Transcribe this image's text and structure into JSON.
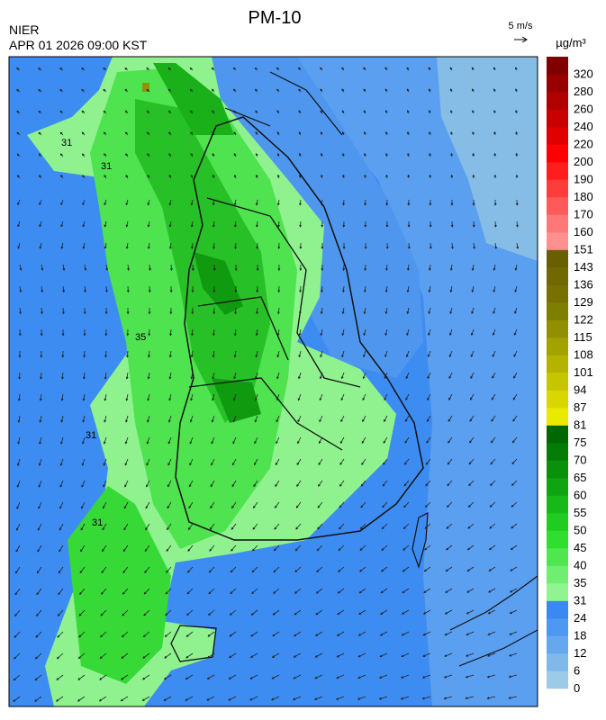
{
  "header": {
    "title": "PM-10",
    "agency": "NIER",
    "datetime": "APR 01 2026 09:00 KST",
    "wind_scale": "5 m/s"
  },
  "legend": {
    "unit": "µg/m³",
    "ticks": [
      0,
      6,
      12,
      18,
      24,
      31,
      35,
      40,
      45,
      50,
      55,
      60,
      65,
      70,
      75,
      81,
      87,
      94,
      101,
      108,
      115,
      122,
      129,
      136,
      143,
      151,
      160,
      170,
      180,
      190,
      200,
      220,
      240,
      260,
      280,
      320
    ],
    "colors": [
      "#9bcbe6",
      "#80b8ea",
      "#66a8ee",
      "#4d98f0",
      "#3a88f2",
      "#90f590",
      "#70ee70",
      "#50e650",
      "#30de30",
      "#20cc20",
      "#18b818",
      "#10a410",
      "#0a900a",
      "#057c05",
      "#006800",
      "#eaea00",
      "#d8d800",
      "#c6c600",
      "#b4b400",
      "#a2a200",
      "#909000",
      "#7e7e00",
      "#787000",
      "#706800",
      "#686000",
      "#ff9090",
      "#ff7878",
      "#ff5a5a",
      "#ff3c3c",
      "#ff1e1e",
      "#ff0000",
      "#e00000",
      "#c80000",
      "#b00000",
      "#980000",
      "#800000"
    ]
  },
  "map_labels": [
    "31",
    "31",
    "35",
    "31",
    "31"
  ]
}
